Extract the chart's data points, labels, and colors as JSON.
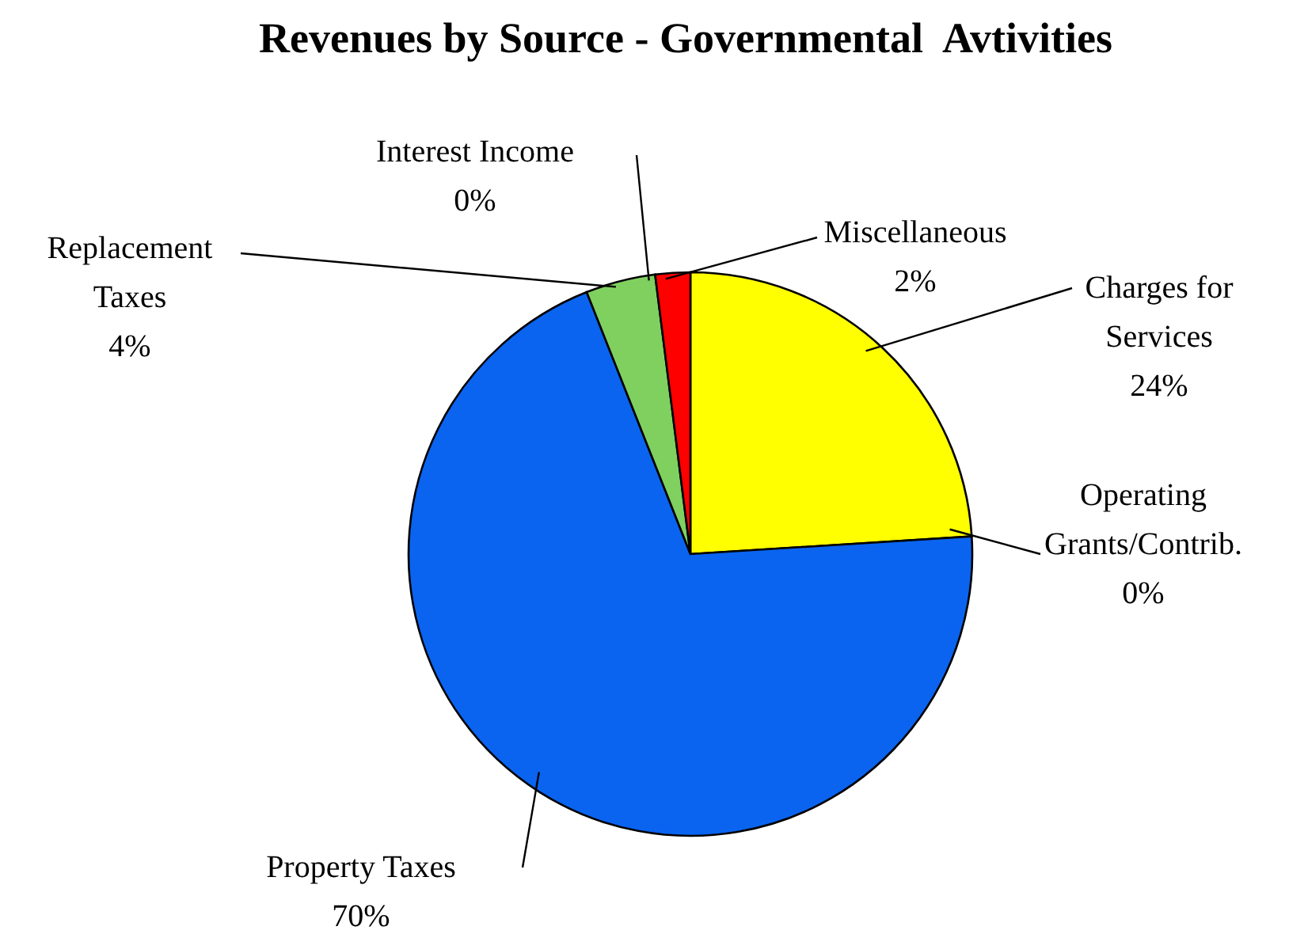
{
  "chart_data": {
    "type": "pie",
    "title": "Revenues by Source - Governmental  Avtivities",
    "categories": [
      "Charges for Services",
      "Operating Grants/Contrib.",
      "Property Taxes",
      "Replacement Taxes",
      "Interest Income",
      "Miscellaneous"
    ],
    "values": [
      24,
      0,
      70,
      4,
      0,
      2
    ],
    "colors": [
      "#ffff00",
      "#993366",
      "#0a64f0",
      "#80d060",
      "#00b0f0",
      "#ff0000"
    ],
    "value_labels": [
      "24%",
      "0%",
      "70%",
      "4%",
      "0%",
      "2%"
    ],
    "legend": false
  }
}
